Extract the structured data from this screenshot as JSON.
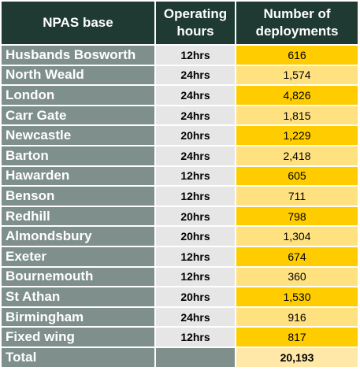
{
  "table": {
    "headers": {
      "base": "NPAS base",
      "hours_line1": "Operating",
      "hours_line2": "hours",
      "deployments_line1": "Number of",
      "deployments_line2": "deployments"
    },
    "rows": [
      {
        "base": "Husbands Bosworth",
        "hours": "12hrs",
        "deployments": "616"
      },
      {
        "base": "North Weald",
        "hours": "24hrs",
        "deployments": "1,574"
      },
      {
        "base": "London",
        "hours": "24hrs",
        "deployments": "4,826"
      },
      {
        "base": "Carr Gate",
        "hours": "24hrs",
        "deployments": "1,815"
      },
      {
        "base": "Newcastle",
        "hours": "20hrs",
        "deployments": "1,229"
      },
      {
        "base": "Barton",
        "hours": "24hrs",
        "deployments": "2,418"
      },
      {
        "base": "Hawarden",
        "hours": "12hrs",
        "deployments": "605"
      },
      {
        "base": "Benson",
        "hours": "12hrs",
        "deployments": "711"
      },
      {
        "base": "Redhill",
        "hours": "20hrs",
        "deployments": "798"
      },
      {
        "base": "Almondsbury",
        "hours": "20hrs",
        "deployments": "1,304"
      },
      {
        "base": "Exeter",
        "hours": "12hrs",
        "deployments": "674"
      },
      {
        "base": "Bournemouth",
        "hours": "12hrs",
        "deployments": "360"
      },
      {
        "base": "St Athan",
        "hours": "20hrs",
        "deployments": "1,530"
      },
      {
        "base": "Birmingham",
        "hours": "24hrs",
        "deployments": "916"
      },
      {
        "base": "Fixed wing",
        "hours": "12hrs",
        "deployments": "817"
      }
    ],
    "total": {
      "label": "Total",
      "deployments": "20,193"
    }
  },
  "colors": {
    "header_bg": "#1f3a33",
    "base_bg": "#7f908c",
    "hours_bg": "#e6e6e6",
    "deploy_dark": "#ffcc00",
    "deploy_light": "#ffe27f",
    "total_bg": "#ffe8a8"
  }
}
